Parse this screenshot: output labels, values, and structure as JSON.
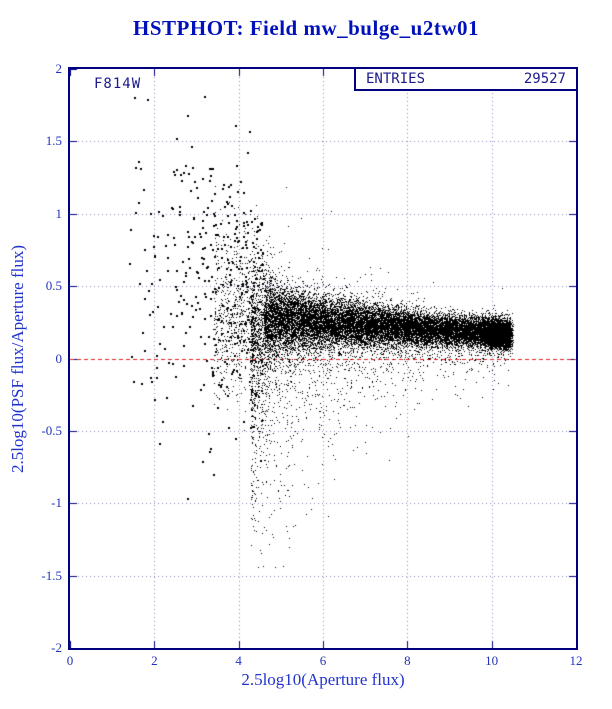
{
  "title": "HSTPHOT: Field mw_bulge_u2tw01",
  "plot": {
    "frame_color": "#000080",
    "grid_color": "#8888bb",
    "title_color": "#0011bb",
    "annotation": "F814W",
    "stats": {
      "label": "ENTRIES",
      "value": "29527"
    }
  },
  "chart_data": {
    "type": "scatter",
    "title": "HSTPHOT: Field mw_bulge_u2tw01",
    "xlabel": "2.5log10(Aperture flux)",
    "ylabel": "2.5log10(PSF flux/Aperture flux)",
    "xlim": [
      0,
      12
    ],
    "ylim": [
      -2,
      2
    ],
    "x_ticks": [
      0,
      2,
      4,
      6,
      8,
      10,
      12
    ],
    "y_ticks": [
      2,
      1.5,
      1,
      0.5,
      0,
      -0.5,
      -1,
      -1.5,
      -2
    ],
    "grid": true,
    "legend_position": "none",
    "n_points": 29527,
    "series_color": "#000000",
    "ref_line": {
      "y": 0,
      "color": "#dd2222",
      "style": "dashed"
    },
    "annotations": [
      {
        "text": "F814W"
      }
    ],
    "stats_box": {
      "label": "ENTRIES",
      "value": 29527
    },
    "description": "Ratio of PSF to aperture flux vs aperture flux; dense wedge converging to ~+0.2 dex at bright end, broad sparse scatter at faint end, reference line at 0.",
    "generator": {
      "seed": 29527,
      "center": {
        "c0": 0.375,
        "c1": -0.0195
      },
      "groups": [
        {
          "model": "sparse",
          "n": 380,
          "xmin": 1.3,
          "xmax": 4.6,
          "xpow": 0.55,
          "yc0": 0.9,
          "yc1": -0.12,
          "ys0": 0.85,
          "ys1": -0.09,
          "ymin": -1.1,
          "ymax": 1.85,
          "marker": 2
        },
        {
          "model": "core",
          "n": 900,
          "xmin": 3.4,
          "xmax": 4.8,
          "s0": 0.28,
          "sdecay": 3.0,
          "s1": 0.05,
          "marker": 1
        },
        {
          "model": "core",
          "n": 15500,
          "xmin": 4.6,
          "xmax": 10.45,
          "s0": 0.085,
          "sdecay": 2.6,
          "s1": 0.038,
          "marker": 1
        },
        {
          "model": "blob",
          "n": 2800,
          "xmean": 10.1,
          "xsd": 0.22,
          "xmin": 9.3,
          "xmax": 10.5,
          "ysigma": 0.05,
          "marker": 1
        },
        {
          "model": "tail",
          "dir": -1,
          "n": 2900,
          "xmin": 4.3,
          "xmax": 10.45,
          "xpow": 1.7,
          "t0": 0.42,
          "tdecay": 2.2,
          "t1": 0.055,
          "yclip": -1.45,
          "marker": 1
        },
        {
          "model": "tail",
          "dir": 1,
          "n": 800,
          "xmin": 4.3,
          "xmax": 10.45,
          "xpow": 1.4,
          "t0": 0.16,
          "tdecay": 2.5,
          "t1": 0.03,
          "yclip": 1.9,
          "marker": 1
        }
      ]
    }
  }
}
